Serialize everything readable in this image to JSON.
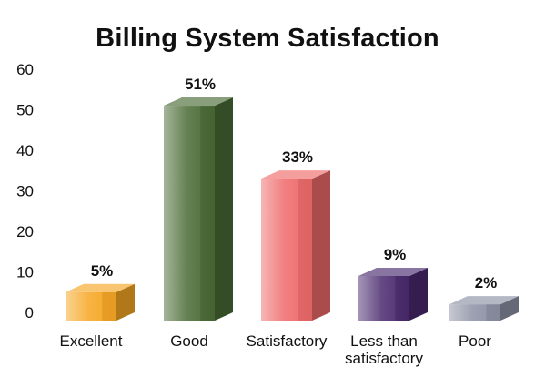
{
  "chart_data": {
    "type": "bar",
    "title": "Billing System Satisfaction",
    "xlabel": "",
    "ylabel": "",
    "ylim": [
      0,
      60
    ],
    "yticks": [
      "0",
      "10",
      "20",
      "30",
      "40",
      "50",
      "60"
    ],
    "categories": [
      "Excellent",
      "Good",
      "Satisfactory",
      "Less than satisfactory",
      "Poor"
    ],
    "category_lines": [
      [
        "Excellent"
      ],
      [
        "Good"
      ],
      [
        "Satisfactory"
      ],
      [
        "Less than",
        "satisfactory"
      ],
      [
        "Poor"
      ]
    ],
    "values": [
      5,
      51,
      33,
      9,
      2
    ],
    "data_labels": [
      "5%",
      "51%",
      "33%",
      "9%",
      "2%"
    ],
    "colors": [
      "#f5a623",
      "#4a6b35",
      "#ee6a6a",
      "#4a2a6e",
      "#8c90a4"
    ],
    "grid": false,
    "legend": "none",
    "style": "3d-bars"
  }
}
